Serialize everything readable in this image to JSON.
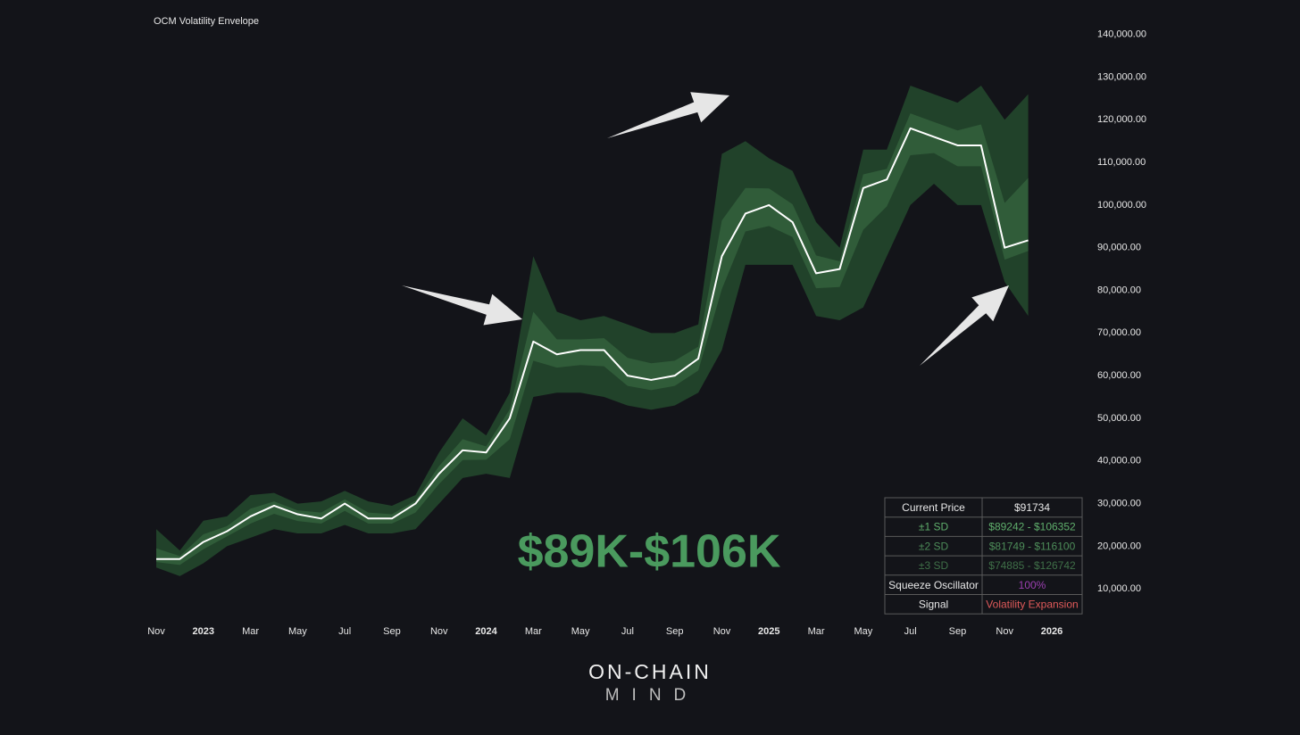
{
  "chart_data": {
    "type": "line",
    "title": "OCM Volatility Envelope",
    "x": [
      "2022-11",
      "2022-12",
      "2023-01",
      "2023-02",
      "2023-03",
      "2023-04",
      "2023-05",
      "2023-06",
      "2023-07",
      "2023-08",
      "2023-09",
      "2023-10",
      "2023-11",
      "2023-12",
      "2024-01",
      "2024-02",
      "2024-03",
      "2024-04",
      "2024-05",
      "2024-06",
      "2024-07",
      "2024-08",
      "2024-09",
      "2024-10",
      "2024-11",
      "2024-12",
      "2025-01",
      "2025-02",
      "2025-03",
      "2025-04",
      "2025-05",
      "2025-06",
      "2025-07",
      "2025-08",
      "2025-09",
      "2025-10",
      "2025-11",
      "2025-12"
    ],
    "xlim": [
      "2022-11",
      "2026-01"
    ],
    "xticks": [
      {
        "value": "2022-11",
        "label": "Nov"
      },
      {
        "value": "2023-01",
        "label": "2023"
      },
      {
        "value": "2023-03",
        "label": "Mar"
      },
      {
        "value": "2023-05",
        "label": "May"
      },
      {
        "value": "2023-07",
        "label": "Jul"
      },
      {
        "value": "2023-09",
        "label": "Sep"
      },
      {
        "value": "2023-11",
        "label": "Nov"
      },
      {
        "value": "2024-01",
        "label": "2024"
      },
      {
        "value": "2024-03",
        "label": "Mar"
      },
      {
        "value": "2024-05",
        "label": "May"
      },
      {
        "value": "2024-07",
        "label": "Jul"
      },
      {
        "value": "2024-09",
        "label": "Sep"
      },
      {
        "value": "2024-11",
        "label": "Nov"
      },
      {
        "value": "2025-01",
        "label": "2025"
      },
      {
        "value": "2025-03",
        "label": "Mar"
      },
      {
        "value": "2025-05",
        "label": "May"
      },
      {
        "value": "2025-07",
        "label": "Jul"
      },
      {
        "value": "2025-09",
        "label": "Sep"
      },
      {
        "value": "2025-11",
        "label": "Nov"
      },
      {
        "value": "2026-01",
        "label": "2026"
      }
    ],
    "ylim": [
      0,
      146000
    ],
    "yticks": [
      {
        "value": 10000,
        "label": "10,000.00"
      },
      {
        "value": 20000,
        "label": "20,000.00"
      },
      {
        "value": 30000,
        "label": "30,000.00"
      },
      {
        "value": 40000,
        "label": "40,000.00"
      },
      {
        "value": 50000,
        "label": "50,000.00"
      },
      {
        "value": 60000,
        "label": "60,000.00"
      },
      {
        "value": 70000,
        "label": "70,000.00"
      },
      {
        "value": 80000,
        "label": "80,000.00"
      },
      {
        "value": 90000,
        "label": "90,000.00"
      },
      {
        "value": 100000,
        "label": "100,000.00"
      },
      {
        "value": 110000,
        "label": "110,000.00"
      },
      {
        "value": 120000,
        "label": "120,000.00"
      },
      {
        "value": 130000,
        "label": "130,000.00"
      },
      {
        "value": 140000,
        "label": "140,000.00"
      }
    ],
    "grid": false,
    "bands": [
      {
        "color": "#21422a",
        "upper": [
          24000,
          19000,
          26000,
          27000,
          32000,
          32500,
          30000,
          30500,
          33000,
          30500,
          29500,
          32000,
          42000,
          50000,
          46000,
          56000,
          88000,
          75000,
          73000,
          74000,
          72000,
          70000,
          70000,
          72000,
          112000,
          115000,
          111000,
          108000,
          96000,
          90000,
          113000,
          113000,
          128000,
          126000,
          124000,
          128000,
          120000,
          126000
        ],
        "lower": [
          15000,
          13000,
          16000,
          20000,
          22000,
          24000,
          23000,
          23000,
          25000,
          23000,
          23000,
          24000,
          30000,
          36000,
          37000,
          36000,
          55000,
          56000,
          56000,
          55000,
          53000,
          52000,
          53000,
          56000,
          66000,
          86000,
          86000,
          86000,
          74000,
          73000,
          76000,
          88000,
          100000,
          105000,
          100000,
          100000,
          82000,
          74000
        ]
      },
      {
        "color": "#305c39",
        "upper": [
          19500,
          17700,
          22800,
          24700,
          28800,
          30500,
          28400,
          27900,
          31000,
          27900,
          27500,
          30700,
          38800,
          45100,
          43400,
          52100,
          75000,
          68500,
          68500,
          68800,
          64200,
          62900,
          63500,
          66800,
          96400,
          104000,
          103900,
          100200,
          88200,
          86800,
          107200,
          108500,
          121500,
          119500,
          117500,
          118900,
          100500,
          106352
        ],
        "lower": [
          16300,
          15600,
          19300,
          22300,
          25300,
          27600,
          25900,
          25300,
          28300,
          25300,
          25300,
          27900,
          34600,
          40200,
          40300,
          45100,
          63500,
          61900,
          62500,
          62200,
          57600,
          56600,
          57600,
          61200,
          80300,
          93800,
          95100,
          92500,
          80500,
          80800,
          94200,
          99700,
          111700,
          112200,
          109100,
          109100,
          87200,
          89242
        ]
      }
    ],
    "series": [
      {
        "color": "#ffffff",
        "values": [
          17000,
          17000,
          21000,
          23500,
          27000,
          29500,
          27500,
          26500,
          30000,
          26500,
          26500,
          30000,
          37000,
          42500,
          42000,
          50000,
          68000,
          65000,
          66000,
          66000,
          60000,
          59000,
          60000,
          64000,
          88000,
          98000,
          100000,
          96000,
          84000,
          85000,
          104000,
          106000,
          118000,
          116000,
          114000,
          114000,
          90000,
          91734
        ]
      }
    ],
    "annotation": "$89K-$106K"
  },
  "table": {
    "rows": [
      [
        "Current Price",
        "$91734"
      ],
      [
        "±1 SD",
        "$89242 - $106352"
      ],
      [
        "±2 SD",
        "$81749 - $116100"
      ],
      [
        "±3 SD",
        "$74885 - $126742"
      ],
      [
        "Squeeze Oscillator",
        "100%"
      ],
      [
        "Signal",
        "Volatility Expansion"
      ]
    ]
  },
  "logo": {
    "line1": "ON-CHAIN",
    "line2": "MIND"
  }
}
